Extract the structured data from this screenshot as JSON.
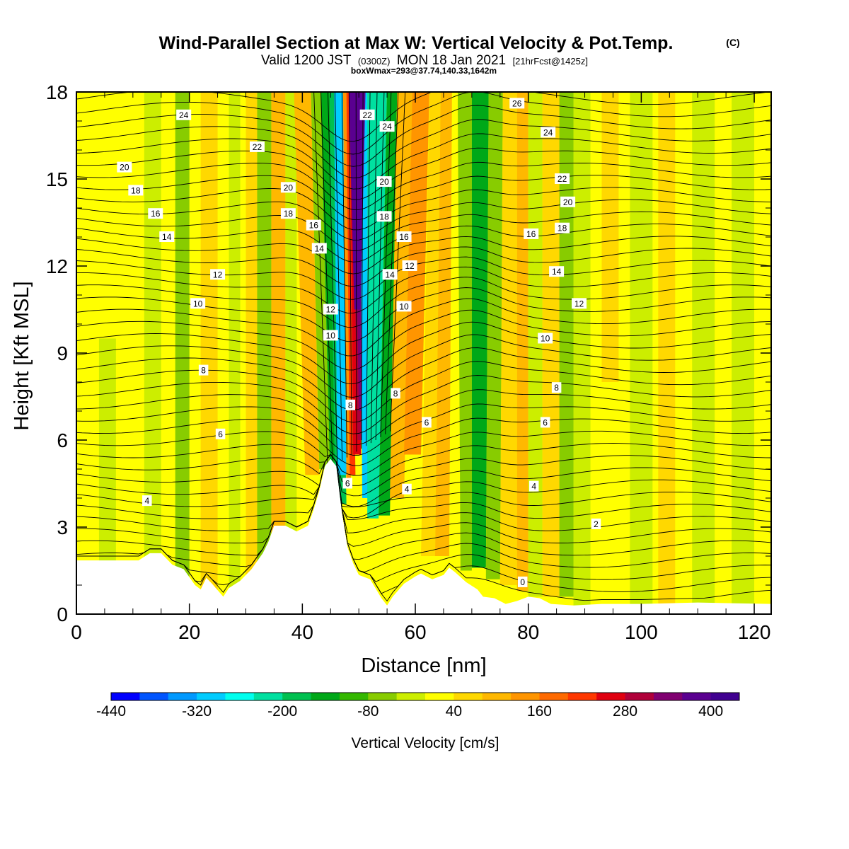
{
  "title": {
    "main": "Wind-Parallel Section at Max W: Vertical Velocity & Pot.Temp.",
    "copyright": "(C)",
    "valid_prefix": "Valid 1200 JST",
    "valid_utc": "(0300Z)",
    "valid_date": "MON 18 Jan 2021",
    "forecast": "[21hrFcst@1425z]",
    "box_info": "boxWmax=293@37.74,140.33,1642m"
  },
  "chart_data": {
    "type": "heatmap",
    "xlabel": "Distance [nm]",
    "ylabel": "Height [Kft MSL]",
    "xlim": [
      0,
      123
    ],
    "ylim": [
      0,
      18
    ],
    "x_ticks": [
      "0",
      "20",
      "40",
      "60",
      "80",
      "100",
      "120"
    ],
    "y_ticks": [
      "0",
      "3",
      "6",
      "9",
      "12",
      "15",
      "18"
    ],
    "colorbar": {
      "label": "Vertical Velocity [cm/s]",
      "range": [
        -440,
        440
      ],
      "step": 40,
      "tick_labels": [
        "-440",
        "-320",
        "-200",
        "-80",
        "40",
        "160",
        "280",
        "400"
      ],
      "colors": [
        "#0000ff",
        "#0055ff",
        "#0099ff",
        "#00ccff",
        "#00ffee",
        "#00e0a0",
        "#00c050",
        "#00a818",
        "#34b800",
        "#88cc00",
        "#ccee00",
        "#ffff00",
        "#ffd800",
        "#ffb800",
        "#ff9500",
        "#ff6a00",
        "#ff3800",
        "#e00010",
        "#b0003a",
        "#800070",
        "#5a0090",
        "#400090"
      ]
    },
    "isentropes": {
      "quantity": "Potential temperature (contours)",
      "labels": [
        {
          "x": 19,
          "y": 17.2,
          "text": "24"
        },
        {
          "x": 32,
          "y": 16.1,
          "text": "22"
        },
        {
          "x": 8.5,
          "y": 15.4,
          "text": "20"
        },
        {
          "x": 10.5,
          "y": 14.6,
          "text": "18"
        },
        {
          "x": 14,
          "y": 13.8,
          "text": "16"
        },
        {
          "x": 16,
          "y": 13.0,
          "text": "14"
        },
        {
          "x": 25,
          "y": 11.7,
          "text": "12"
        },
        {
          "x": 21.5,
          "y": 10.7,
          "text": "10"
        },
        {
          "x": 22.5,
          "y": 8.4,
          "text": "8"
        },
        {
          "x": 25.5,
          "y": 6.2,
          "text": "6"
        },
        {
          "x": 12.5,
          "y": 3.9,
          "text": "4"
        },
        {
          "x": 37.5,
          "y": 14.7,
          "text": "20"
        },
        {
          "x": 37.5,
          "y": 13.8,
          "text": "18"
        },
        {
          "x": 42,
          "y": 13.4,
          "text": "16"
        },
        {
          "x": 43,
          "y": 12.6,
          "text": "14"
        },
        {
          "x": 45,
          "y": 10.5,
          "text": "12"
        },
        {
          "x": 45,
          "y": 9.6,
          "text": "10"
        },
        {
          "x": 48.5,
          "y": 7.2,
          "text": "8"
        },
        {
          "x": 48,
          "y": 4.5,
          "text": "6"
        },
        {
          "x": 51.5,
          "y": 17.2,
          "text": "22"
        },
        {
          "x": 55,
          "y": 16.8,
          "text": "24"
        },
        {
          "x": 54.5,
          "y": 14.9,
          "text": "20"
        },
        {
          "x": 54.5,
          "y": 13.7,
          "text": "18"
        },
        {
          "x": 58,
          "y": 13.0,
          "text": "16"
        },
        {
          "x": 59,
          "y": 12.0,
          "text": "12"
        },
        {
          "x": 55.5,
          "y": 11.7,
          "text": "14"
        },
        {
          "x": 58,
          "y": 10.6,
          "text": "10"
        },
        {
          "x": 56.5,
          "y": 7.6,
          "text": "8"
        },
        {
          "x": 62,
          "y": 6.6,
          "text": "6"
        },
        {
          "x": 58.5,
          "y": 4.3,
          "text": "4"
        },
        {
          "x": 78,
          "y": 17.6,
          "text": "26"
        },
        {
          "x": 83.5,
          "y": 16.6,
          "text": "24"
        },
        {
          "x": 86,
          "y": 15.0,
          "text": "22"
        },
        {
          "x": 87,
          "y": 14.2,
          "text": "20"
        },
        {
          "x": 86,
          "y": 13.3,
          "text": "18"
        },
        {
          "x": 80.5,
          "y": 13.1,
          "text": "16"
        },
        {
          "x": 85,
          "y": 11.8,
          "text": "14"
        },
        {
          "x": 89,
          "y": 10.7,
          "text": "12"
        },
        {
          "x": 83,
          "y": 9.5,
          "text": "10"
        },
        {
          "x": 85,
          "y": 7.8,
          "text": "8"
        },
        {
          "x": 83,
          "y": 6.6,
          "text": "6"
        },
        {
          "x": 81,
          "y": 4.4,
          "text": "4"
        },
        {
          "x": 92,
          "y": 3.1,
          "text": "2"
        },
        {
          "x": 79,
          "y": 1.1,
          "text": "0"
        }
      ]
    },
    "terrain_kft": [
      [
        0,
        1.85
      ],
      [
        7,
        1.85
      ],
      [
        11,
        1.85
      ],
      [
        13,
        2.1
      ],
      [
        15,
        2.1
      ],
      [
        17,
        1.7
      ],
      [
        19,
        1.55
      ],
      [
        21,
        1.0
      ],
      [
        22,
        0.85
      ],
      [
        23,
        1.25
      ],
      [
        24,
        1.05
      ],
      [
        26,
        0.6
      ],
      [
        27,
        0.9
      ],
      [
        29,
        1.15
      ],
      [
        31,
        1.55
      ],
      [
        33,
        2.1
      ],
      [
        34,
        2.5
      ],
      [
        35,
        3.05
      ],
      [
        37,
        3.05
      ],
      [
        39,
        2.85
      ],
      [
        41,
        3.05
      ],
      [
        42,
        3.6
      ],
      [
        43,
        4.25
      ],
      [
        44,
        5.1
      ],
      [
        45,
        5.35
      ],
      [
        46,
        5.1
      ],
      [
        47,
        3.5
      ],
      [
        48,
        2.3
      ],
      [
        49,
        1.75
      ],
      [
        50,
        1.35
      ],
      [
        52,
        1.2
      ],
      [
        54,
        0.55
      ],
      [
        55,
        0.3
      ],
      [
        56,
        0.6
      ],
      [
        58,
        1.05
      ],
      [
        60,
        1.3
      ],
      [
        61,
        1.4
      ],
      [
        63,
        1.2
      ],
      [
        65,
        1.35
      ],
      [
        66,
        1.6
      ],
      [
        67,
        1.45
      ],
      [
        69,
        1.1
      ],
      [
        71,
        0.85
      ],
      [
        72,
        0.6
      ],
      [
        74,
        0.55
      ],
      [
        76,
        0.35
      ],
      [
        78,
        0.45
      ],
      [
        80,
        0.6
      ],
      [
        82,
        0.55
      ],
      [
        84,
        0.35
      ],
      [
        88,
        0.3
      ],
      [
        93,
        0.35
      ],
      [
        100,
        0.35
      ],
      [
        110,
        0.4
      ],
      [
        123,
        0.35
      ]
    ]
  }
}
